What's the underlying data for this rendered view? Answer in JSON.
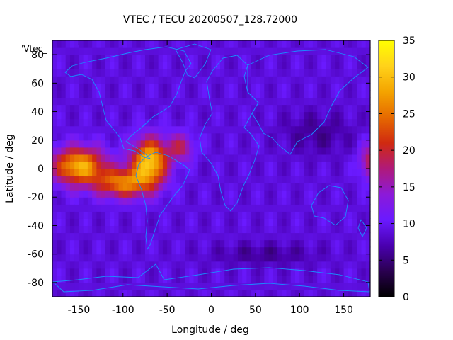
{
  "chart_data": {
    "type": "heatmap",
    "title": "VTEC / TECU 20200507_128.72000",
    "xlabel": "Longitude / deg",
    "ylabel": "Latitude / deg",
    "xlim": [
      -180,
      180
    ],
    "ylim": [
      -90,
      90
    ],
    "x_ticks": [
      -150,
      -100,
      -50,
      0,
      50,
      100,
      150
    ],
    "y_ticks": [
      -80,
      -60,
      -40,
      -20,
      0,
      20,
      40,
      60,
      80
    ],
    "colorbar": {
      "min": 0,
      "max": 35,
      "ticks": [
        0,
        5,
        10,
        15,
        20,
        25,
        30,
        35
      ]
    },
    "legend_label": "'Vtec_",
    "palette": [
      "#000000",
      "#2a0050",
      "#4a00b0",
      "#6a1aff",
      "#8c1ad8",
      "#b01a7a",
      "#d02a10",
      "#e66a00",
      "#f4a400",
      "#ffd21a",
      "#ffff00"
    ],
    "coastline_color": "#1a8cff",
    "background_level": 9,
    "anomalies": [
      {
        "lon": -150,
        "lat": 2,
        "sig_lon": 30,
        "sig_lat": 13,
        "amp": 20
      },
      {
        "lon": -100,
        "lat": -10,
        "sig_lon": 30,
        "sig_lat": 10,
        "amp": 16
      },
      {
        "lon": -70,
        "lat": 5,
        "sig_lon": 20,
        "sig_lat": 16,
        "amp": 22
      },
      {
        "lon": -35,
        "lat": 15,
        "sig_lon": 15,
        "sig_lat": 10,
        "amp": 9
      },
      {
        "lon": 180,
        "lat": 5,
        "sig_lon": 12,
        "sig_lat": 12,
        "amp": 10
      },
      {
        "lon": 120,
        "lat": 25,
        "sig_lon": 40,
        "sig_lat": 15,
        "amp": -3
      },
      {
        "lon": 60,
        "lat": -60,
        "sig_lon": 60,
        "sig_lat": 8,
        "amp": -3
      }
    ]
  }
}
